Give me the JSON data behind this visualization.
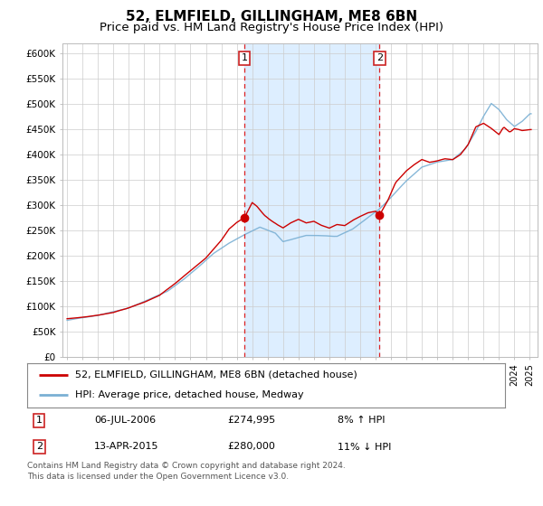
{
  "title": "52, ELMFIELD, GILLINGHAM, ME8 6BN",
  "subtitle": "Price paid vs. HM Land Registry's House Price Index (HPI)",
  "title_fontsize": 11,
  "subtitle_fontsize": 9.5,
  "background_color": "#ffffff",
  "plot_bg_color": "#ffffff",
  "grid_color": "#cccccc",
  "vline1_x": 2006.5,
  "vline2_x": 2015.25,
  "vline_color": "#dd2222",
  "shade_color": "#ddeeff",
  "line1_color": "#cc0000",
  "line2_color": "#7ab0d4",
  "legend_line1": "52, ELMFIELD, GILLINGHAM, ME8 6BN (detached house)",
  "legend_line2": "HPI: Average price, detached house, Medway",
  "annot1_num": "1",
  "annot1_date": "06-JUL-2006",
  "annot1_price": "£274,995",
  "annot1_hpi": "8% ↑ HPI",
  "annot2_num": "2",
  "annot2_date": "13-APR-2015",
  "annot2_price": "£280,000",
  "annot2_hpi": "11% ↓ HPI",
  "footnote": "Contains HM Land Registry data © Crown copyright and database right 2024.\nThis data is licensed under the Open Government Licence v3.0.",
  "ylim": [
    0,
    620000
  ],
  "yticks": [
    0,
    50000,
    100000,
    150000,
    200000,
    250000,
    300000,
    350000,
    400000,
    450000,
    500000,
    550000,
    600000
  ],
  "ytick_labels": [
    "£0",
    "£50K",
    "£100K",
    "£150K",
    "£200K",
    "£250K",
    "£300K",
    "£350K",
    "£400K",
    "£450K",
    "£500K",
    "£550K",
    "£600K"
  ],
  "xlim": [
    1994.7,
    2025.5
  ],
  "marker1_x": 2006.5,
  "marker1_y": 274995,
  "marker2_x": 2015.25,
  "marker2_y": 280000
}
